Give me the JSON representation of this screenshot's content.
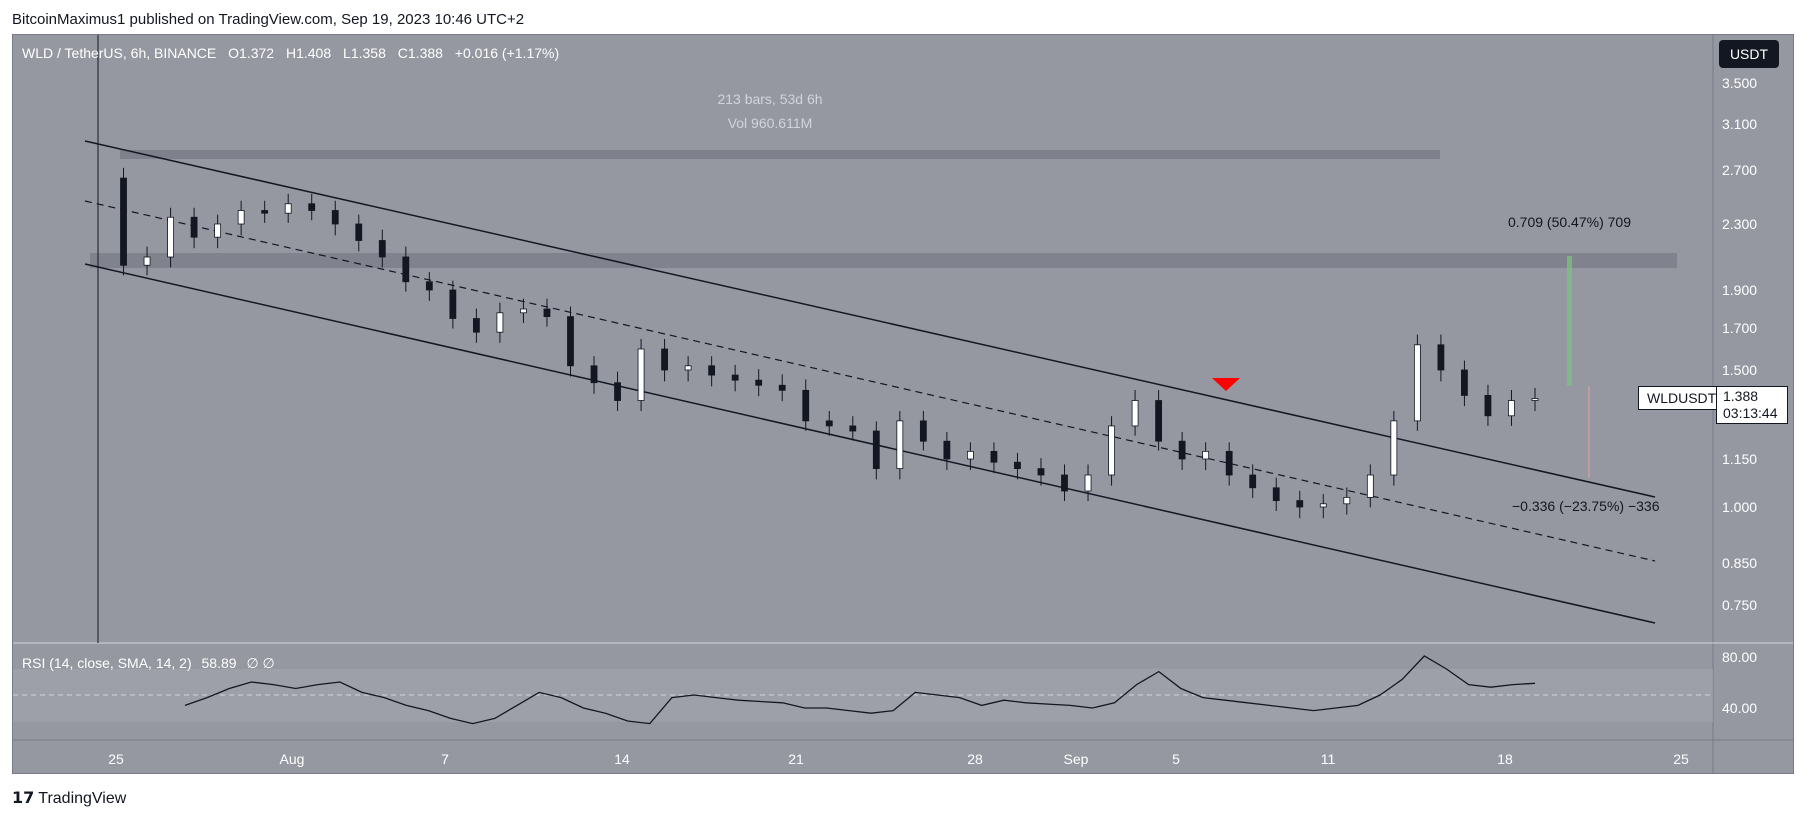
{
  "header": {
    "publisher": "BitcoinMaximus1 published on TradingView.com, Sep 19, 2023 10:46 UTC+2"
  },
  "legend": {
    "symbol": "WLD / TetherUS, 6h, BINANCE",
    "o_label": "O",
    "o": "1.372",
    "h_label": "H",
    "h": "1.408",
    "l_label": "L",
    "l": "1.358",
    "c_label": "C",
    "c": "1.388",
    "change": "+0.016 (+1.17%)"
  },
  "currency_button": "USDT",
  "measure": {
    "bars": "213 bars, 53d 6h",
    "vol": "Vol 960.611M"
  },
  "fib": {
    "up": "0.709 (50.47%) 709",
    "down": "−0.336 (−23.75%) −336"
  },
  "last_price": {
    "symbol": "WLDUSDT",
    "price": "1.388",
    "countdown": "03:13:44"
  },
  "rsi_legend": {
    "label": "RSI (14, close, SMA, 14, 2)",
    "value": "58.89",
    "extra": "∅  ∅"
  },
  "colors": {
    "background": "#9598a1",
    "text": "#ffffff",
    "marker": "#ff0000",
    "fib_green": "#7bc47f"
  },
  "chart_data": [
    {
      "type": "line",
      "title": "WLD / TetherUS, 6h, BINANCE",
      "x_ticks": [
        "25",
        "Aug",
        "7",
        "14",
        "21",
        "28",
        "Sep",
        "5",
        "11",
        "18",
        "25"
      ],
      "y_ticks": [
        "3.500",
        "3.100",
        "2.700",
        "2.300",
        "1.900",
        "1.700",
        "1.500",
        "1.150",
        "1.000",
        "0.850",
        "0.750"
      ],
      "series": [
        {
          "values": [
            2.64,
            2.05,
            2.1,
            2.35,
            2.22,
            2.3,
            2.4,
            2.38,
            2.45,
            2.4,
            2.3,
            2.2,
            2.1,
            1.95,
            1.9,
            1.75,
            1.68,
            1.78,
            1.8,
            1.76,
            1.52,
            1.45,
            1.38,
            1.6,
            1.5,
            1.52,
            1.48,
            1.46,
            1.44,
            1.42,
            1.3,
            1.28,
            1.26,
            1.12,
            1.3,
            1.22,
            1.15,
            1.18,
            1.14,
            1.12,
            1.1,
            1.05,
            1.1,
            1.28,
            1.38,
            1.22,
            1.15,
            1.18,
            1.1,
            1.06,
            1.02,
            1.0,
            1.01,
            1.03,
            1.1,
            1.3,
            1.62,
            1.5,
            1.4,
            1.32,
            1.38,
            1.388
          ]
        }
      ],
      "annotations": [
        "213 bars, 53d 6h",
        "Vol 960.611M",
        "0.709 (50.47%) 709",
        "−0.336 (−23.75%) −336"
      ]
    },
    {
      "type": "line",
      "title": "RSI (14, close, SMA, 14, 2)",
      "y_ticks": [
        "80.00",
        "40.00"
      ],
      "series": [
        {
          "values": [
            42,
            48,
            55,
            60,
            58,
            55,
            58,
            60,
            52,
            48,
            42,
            38,
            32,
            28,
            32,
            42,
            52,
            48,
            40,
            36,
            30,
            28,
            48,
            50,
            48,
            46,
            45,
            44,
            40,
            40,
            38,
            36,
            38,
            52,
            50,
            48,
            42,
            46,
            44,
            43,
            42,
            40,
            44,
            58,
            68,
            55,
            48,
            46,
            44,
            42,
            40,
            38,
            40,
            42,
            50,
            62,
            80,
            70,
            58,
            56,
            58,
            59
          ]
        }
      ]
    }
  ]
}
